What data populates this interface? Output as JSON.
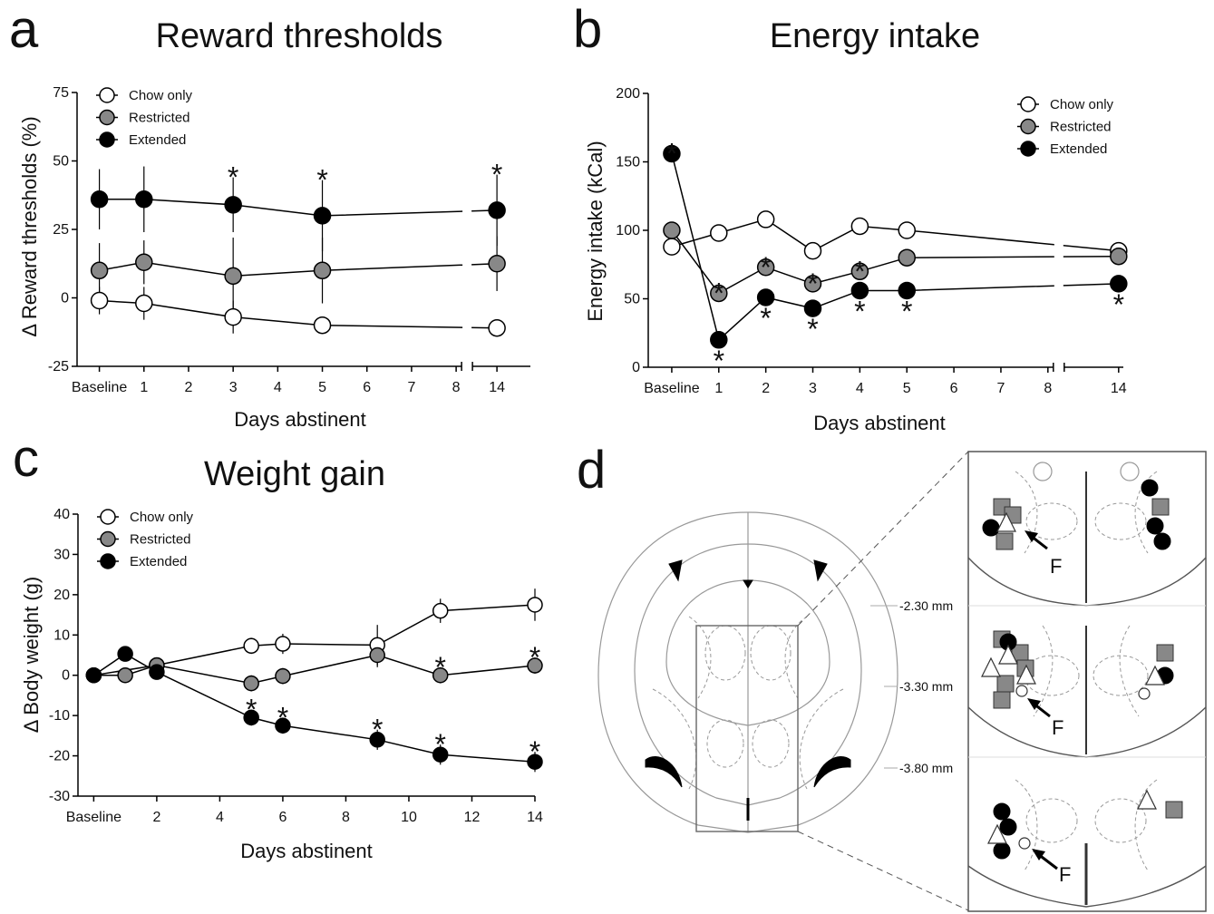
{
  "chart_data": [
    {
      "type": "line",
      "panel": "a",
      "title": "Reward thresholds",
      "xlabel": "Days abstinent",
      "ylabel": "Δ Reward  thresholds (%)",
      "xlim": [
        -0.5,
        14.75
      ],
      "x_break": [
        8,
        14
      ],
      "xticks": [
        {
          "value": 0,
          "label": "Baseline"
        },
        1,
        2,
        3,
        4,
        5,
        6,
        7,
        8,
        14
      ],
      "ylim": [
        -25,
        75
      ],
      "yticks": [
        -25,
        0,
        25,
        50,
        75
      ],
      "legend": "upper left",
      "series": [
        {
          "name": "Chow only",
          "color": "#ffffff",
          "x": [
            0,
            1,
            3,
            5,
            14
          ],
          "values": [
            -1,
            -2,
            -7,
            -10,
            -11
          ],
          "errors": [
            5,
            6,
            6,
            3,
            2
          ]
        },
        {
          "name": "Restricted",
          "color": "#888888",
          "x": [
            0,
            1,
            3,
            5,
            14
          ],
          "values": [
            10,
            13,
            8,
            10,
            12.5
          ],
          "errors": [
            10,
            8,
            14,
            12,
            10
          ]
        },
        {
          "name": "Extended",
          "color": "#000000",
          "x": [
            0,
            1,
            3,
            5,
            14
          ],
          "values": [
            36,
            36,
            34,
            30,
            32
          ],
          "errors": [
            11,
            12,
            10,
            13,
            13
          ],
          "significance_above": [
            null,
            null,
            "*",
            "*",
            "*"
          ]
        }
      ]
    },
    {
      "type": "line",
      "panel": "b",
      "title": "Energy intake",
      "xlabel": "Days abstinent",
      "ylabel": "Energy intake (kCal)",
      "xlim": [
        -0.5,
        14.1
      ],
      "x_break": [
        8,
        14
      ],
      "xticks": [
        {
          "value": 0,
          "label": "Baseline"
        },
        1,
        2,
        3,
        4,
        5,
        6,
        7,
        8,
        14
      ],
      "ylim": [
        0,
        200
      ],
      "yticks": [
        0,
        50,
        100,
        150,
        200
      ],
      "legend": "upper right",
      "series": [
        {
          "name": "Chow only",
          "color": "#ffffff",
          "x": [
            0,
            1,
            2,
            3,
            4,
            5,
            14
          ],
          "values": [
            88,
            98,
            108,
            85,
            103,
            100,
            85
          ]
        },
        {
          "name": "Restricted",
          "color": "#888888",
          "x": [
            0,
            1,
            2,
            3,
            4,
            5,
            14
          ],
          "values": [
            100,
            54,
            73,
            61,
            70,
            80,
            81
          ],
          "significance_above": [
            null,
            "*",
            "*",
            "*",
            "*",
            null,
            null
          ]
        },
        {
          "name": "Extended",
          "color": "#000000",
          "x": [
            0,
            1,
            2,
            3,
            4,
            5,
            14
          ],
          "values": [
            156,
            20,
            51,
            43,
            56,
            56,
            61
          ],
          "significance_above": [
            "*",
            null,
            null,
            null,
            null,
            null,
            null
          ],
          "significance_below": [
            null,
            "*",
            "*",
            "*",
            "*",
            "*",
            "*"
          ]
        }
      ]
    },
    {
      "type": "line",
      "panel": "c",
      "title": "Weight gain",
      "xlabel": "Days abstinent",
      "ylabel": "Δ Body weight (g)",
      "xlim": [
        -0.5,
        14
      ],
      "xticks": [
        {
          "value": 0,
          "label": "Baseline"
        },
        2,
        4,
        6,
        8,
        10,
        12,
        14
      ],
      "ylim": [
        -30,
        40
      ],
      "yticks": [
        -30,
        -20,
        -10,
        0,
        10,
        20,
        30,
        40
      ],
      "legend": "upper left",
      "series": [
        {
          "name": "Chow only",
          "color": "#ffffff",
          "x": [
            0,
            2,
            5,
            6,
            9,
            11,
            14
          ],
          "values": [
            0,
            2.5,
            7.3,
            7.8,
            7.5,
            16,
            17.5
          ],
          "errors": [
            1,
            1.5,
            2,
            2.5,
            5,
            3,
            4
          ]
        },
        {
          "name": "Restricted",
          "color": "#888888",
          "x": [
            0,
            1,
            2,
            5,
            6,
            9,
            11,
            14
          ],
          "values": [
            0,
            0,
            2.5,
            -2,
            -0.2,
            5,
            0,
            2.4
          ],
          "errors": [
            1,
            1,
            1.5,
            2,
            2,
            3,
            2,
            2
          ],
          "significance_above": [
            null,
            null,
            null,
            null,
            null,
            null,
            "*",
            "*"
          ]
        },
        {
          "name": "Extended",
          "color": "#000000",
          "x": [
            0,
            1,
            2,
            5,
            6,
            9,
            11,
            14
          ],
          "values": [
            0,
            5.3,
            0.8,
            -10.5,
            -12.5,
            -16,
            -19.7,
            -21.5
          ],
          "errors": [
            1,
            1.5,
            1.5,
            2,
            2,
            2.5,
            2.5,
            2.5
          ],
          "significance_above": [
            null,
            null,
            null,
            "*",
            "*",
            "*",
            "*",
            "*"
          ]
        }
      ]
    }
  ],
  "diagram": {
    "panel": "d",
    "levels": [
      "-2.30 mm",
      "-3.30 mm",
      "-3.80 mm"
    ],
    "labels": [
      "F",
      "F",
      "F"
    ]
  }
}
